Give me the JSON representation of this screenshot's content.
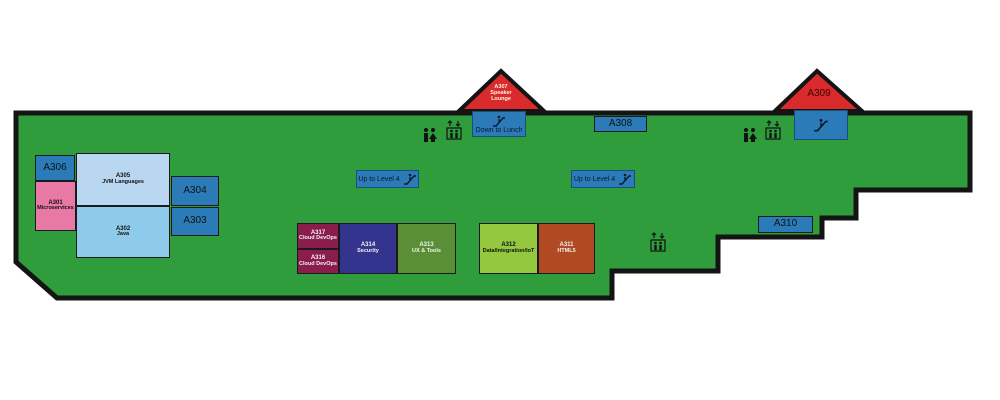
{
  "colors": {
    "floor": "#2f9d3c",
    "outline": "#141414",
    "triangle": "#d92b2b",
    "room_blue": "#2b7bb9",
    "room_light_blue": "#8ecbea",
    "room_pale_blue": "#b9d7f0",
    "room_pink": "#e879a6",
    "room_maroon": "#8b1c4e",
    "room_navy": "#33348e",
    "room_olive": "#5a8f38",
    "room_lime": "#93c83f",
    "room_rust": "#b14a22"
  },
  "icons": [
    "restroom-icon",
    "elevator-icon",
    "escalator-icon"
  ],
  "rooms": {
    "a306": {
      "code": "A306"
    },
    "a305": {
      "code": "A305",
      "desc": "JVM Languages"
    },
    "a301": {
      "code": "A301",
      "desc": "Microservices"
    },
    "a302": {
      "code": "A302",
      "desc": "Java"
    },
    "a304": {
      "code": "A304"
    },
    "a303": {
      "code": "A303"
    },
    "a317": {
      "code": "A317",
      "desc": "Cloud DevOps"
    },
    "a316": {
      "code": "A316",
      "desc": "Cloud DevOps"
    },
    "a314": {
      "code": "A314",
      "desc": "Security"
    },
    "a313": {
      "code": "A313",
      "desc": "UX & Tools"
    },
    "a312": {
      "code": "A312",
      "desc": "Data/Integration/IoT"
    },
    "a311": {
      "code": "A311",
      "desc": "HTML5"
    },
    "a308": {
      "code": "A308"
    },
    "a310": {
      "code": "A310"
    },
    "a307": {
      "code": "A307",
      "desc": "Speaker Lounge"
    },
    "a309": {
      "code": "A309"
    }
  },
  "labels": {
    "down_to_lunch": "Down to Lunch",
    "up_to_level4_left": "Up to Level 4",
    "up_to_level4_right": "Up to Level 4"
  }
}
